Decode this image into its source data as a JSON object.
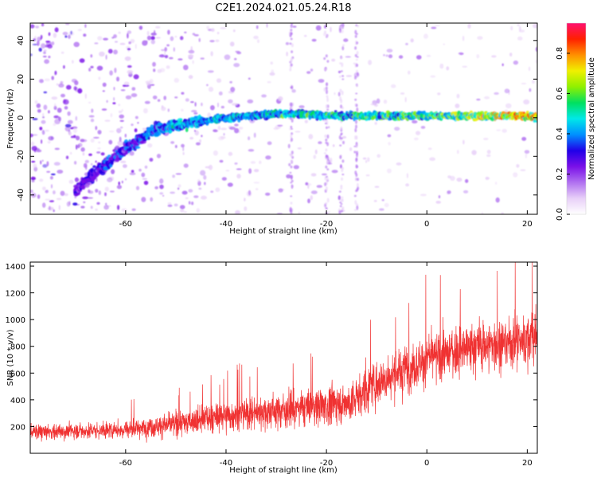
{
  "title": "C2E1.2024.021.05.24.R18",
  "colors": {
    "snr_line": "#f03232",
    "colormap": [
      "#ffffff",
      "#e8d0f8",
      "#b070f0",
      "#7a10e8",
      "#2000e8",
      "#0090ff",
      "#00e8e8",
      "#00e060",
      "#90f000",
      "#f0f000",
      "#ff9000",
      "#ff2000",
      "#ff1070"
    ]
  },
  "chart_data": [
    {
      "type": "heatmap",
      "xlabel": "Height of straight line (km)",
      "ylabel": "Frequency (Hz)",
      "xlim": [
        -79,
        22
      ],
      "ylim": [
        -50,
        49
      ],
      "xticks": [
        -60,
        -40,
        -20,
        0,
        20
      ],
      "yticks": [
        -40,
        -20,
        0,
        20,
        40
      ],
      "colorbar": {
        "label": "Normalized spectral amplitude",
        "range": [
          0,
          0.95
        ],
        "ticks": [
          "0.0",
          "0.2",
          "0.4",
          "0.6",
          "0.8"
        ]
      },
      "signal_track": {
        "x": [
          -70,
          -65,
          -60,
          -57,
          -54,
          -50,
          -45,
          -40,
          -35,
          -30,
          -25,
          -20,
          -10,
          0,
          10,
          20,
          22
        ],
        "frequency": [
          -38,
          -26,
          -16,
          -11,
          -6,
          -4,
          -2,
          0,
          1,
          2,
          2,
          1,
          1,
          1,
          1,
          1,
          0
        ],
        "amplitude": [
          0.3,
          0.35,
          0.35,
          0.4,
          0.45,
          0.5,
          0.45,
          0.5,
          0.5,
          0.55,
          0.55,
          0.55,
          0.6,
          0.6,
          0.7,
          0.85,
          0.8
        ]
      },
      "grid": false
    },
    {
      "type": "line",
      "xlabel": "Height of straight line (km)",
      "ylabel": "SNR (10 * v/v)",
      "xlim": [
        -79,
        22
      ],
      "ylim": [
        0,
        1430
      ],
      "xticks": [
        -60,
        -40,
        -20,
        0,
        20
      ],
      "yticks": [
        200,
        400,
        600,
        800,
        1000,
        1200,
        1400
      ],
      "series": [
        {
          "x": [
            -79,
            -75,
            -70,
            -65,
            -60,
            -55,
            -50,
            -45,
            -40,
            -35,
            -30,
            -25,
            -20,
            -15,
            -12,
            -10,
            -5,
            0,
            5,
            10,
            15,
            20,
            22
          ],
          "mean": [
            160,
            160,
            170,
            170,
            180,
            200,
            220,
            250,
            280,
            300,
            320,
            340,
            360,
            380,
            480,
            520,
            620,
            700,
            760,
            800,
            820,
            850,
            900
          ],
          "spread": [
            140,
            140,
            150,
            150,
            160,
            180,
            220,
            250,
            270,
            280,
            300,
            320,
            340,
            360,
            420,
            400,
            420,
            420,
            440,
            460,
            460,
            480,
            500
          ]
        }
      ],
      "grid": false
    }
  ]
}
